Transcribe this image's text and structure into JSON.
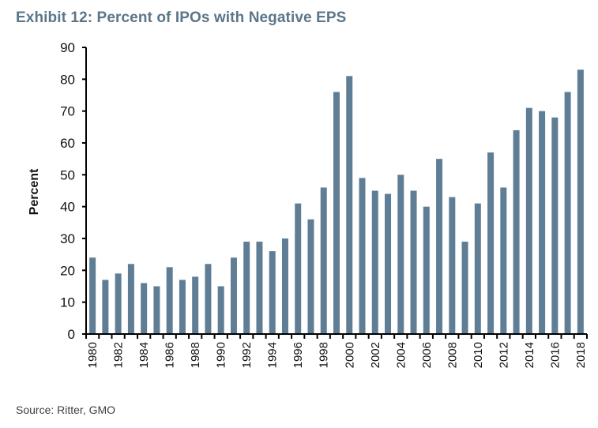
{
  "title": "Exhibit 12: Percent of IPOs with Negative EPS",
  "source": "Source: Ritter, GMO",
  "colors": {
    "bar": "#5f7e95",
    "title": "#5b7589",
    "axis": "#000000"
  },
  "chart_data": {
    "type": "bar",
    "title": "Exhibit 12: Percent of IPOs with Negative EPS",
    "xlabel": "",
    "ylabel": "Percent",
    "ylim": [
      0,
      90
    ],
    "yticks": [
      0,
      10,
      20,
      30,
      40,
      50,
      60,
      70,
      80,
      90
    ],
    "grid": false,
    "legend": "none",
    "categories": [
      "1980",
      "1981",
      "1982",
      "1983",
      "1984",
      "1985",
      "1986",
      "1987",
      "1988",
      "1989",
      "1990",
      "1991",
      "1992",
      "1993",
      "1994",
      "1995",
      "1996",
      "1997",
      "1998",
      "1999",
      "2000",
      "2001",
      "2002",
      "2003",
      "2004",
      "2005",
      "2006",
      "2007",
      "2008",
      "2009",
      "2010",
      "2011",
      "2012",
      "2013",
      "2014",
      "2015",
      "2016",
      "2017",
      "2018"
    ],
    "xtick_labels": [
      "1980",
      "1982",
      "1984",
      "1986",
      "1988",
      "1990",
      "1992",
      "1994",
      "1996",
      "1998",
      "2000",
      "2002",
      "2004",
      "2006",
      "2008",
      "2010",
      "2012",
      "2014",
      "2016",
      "2018"
    ],
    "values": [
      24,
      17,
      19,
      22,
      16,
      15,
      21,
      17,
      18,
      22,
      15,
      24,
      29,
      29,
      26,
      30,
      41,
      36,
      46,
      76,
      81,
      49,
      45,
      44,
      50,
      45,
      40,
      55,
      43,
      29,
      41,
      57,
      46,
      64,
      71,
      70,
      68,
      76,
      83
    ]
  }
}
